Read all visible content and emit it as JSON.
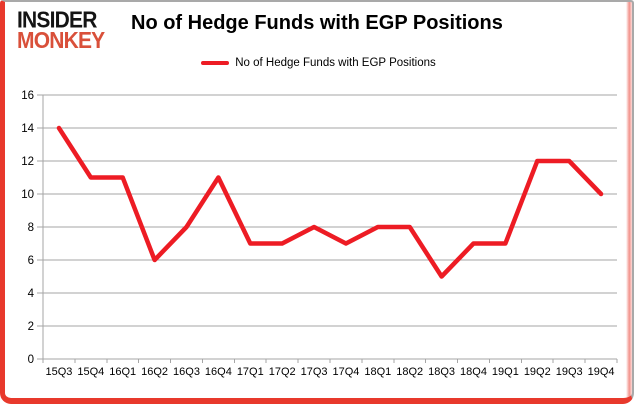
{
  "logo": {
    "line1": "INSIDER",
    "line2": "MONKEY",
    "line1_color": "#141414",
    "line2_color": "#d9503a"
  },
  "header": {
    "title": "No of Hedge Funds with EGP Positions"
  },
  "legend": {
    "label": "No of Hedge Funds with EGP Positions",
    "swatch_color": "#ed1c24"
  },
  "frame": {
    "border_red": "#e8392c",
    "border_gray": "#a9a9a9"
  },
  "chart_data": {
    "type": "line",
    "title": "No of Hedge Funds with EGP Positions",
    "categories": [
      "15Q3",
      "15Q4",
      "16Q1",
      "16Q2",
      "16Q3",
      "16Q4",
      "17Q1",
      "17Q2",
      "17Q3",
      "17Q4",
      "18Q1",
      "18Q2",
      "18Q3",
      "18Q4",
      "19Q1",
      "19Q2",
      "19Q3",
      "19Q4"
    ],
    "series": [
      {
        "name": "No of Hedge Funds with EGP Positions",
        "color": "#ed1c24",
        "values": [
          14,
          11,
          11,
          6,
          8,
          11,
          7,
          7,
          8,
          7,
          8,
          8,
          5,
          7,
          7,
          12,
          12,
          10
        ]
      }
    ],
    "xlabel": "",
    "ylabel": "",
    "ylim": [
      0,
      16
    ],
    "ytick_step": 2,
    "grid": true,
    "gridline_color": "#a6a6a6",
    "tick_label_color": "#000000",
    "legend_position": "top"
  }
}
